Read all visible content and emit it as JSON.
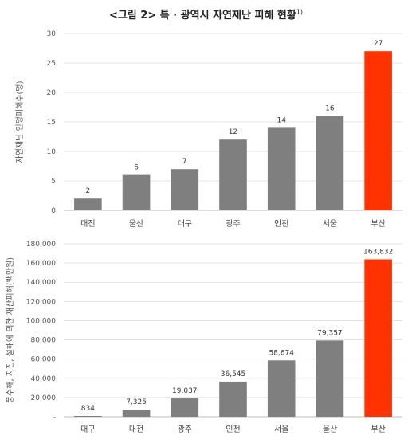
{
  "title": {
    "text": "<그림 2> 특 · 광역시 자연재난 피해 현황",
    "footnote_mark": "1)"
  },
  "colors": {
    "bar": "#7f7f7f",
    "highlight": "#ff3300",
    "grid": "#e3e3e3"
  },
  "chart_data": [
    {
      "type": "bar",
      "categories": [
        "대전",
        "울산",
        "대구",
        "광주",
        "인천",
        "서울",
        "부산"
      ],
      "values": [
        2,
        6,
        7,
        12,
        14,
        16,
        27
      ],
      "value_labels": [
        "2",
        "6",
        "7",
        "12",
        "14",
        "16",
        "27"
      ],
      "highlight": "부산",
      "ylabel": "자연재난 인명피해수(명)",
      "ylim": [
        0,
        30
      ],
      "yticks": [
        0,
        5,
        10,
        15,
        20,
        25,
        30
      ],
      "ytick_labels": [
        "0",
        "5",
        "10",
        "15",
        "20",
        "25",
        "30"
      ],
      "grid": true
    },
    {
      "type": "bar",
      "categories": [
        "대구",
        "대전",
        "광주",
        "인천",
        "서울",
        "울산",
        "부산"
      ],
      "values": [
        834,
        7325,
        19037,
        36545,
        58674,
        79357,
        163832
      ],
      "value_labels": [
        "834",
        "7,325",
        "19,037",
        "36,545",
        "58,674",
        "79,357",
        "163,832"
      ],
      "highlight": "부산",
      "ylabel": "풍수해, 지진, 설해에 의한 재산피해(백만원)",
      "ylim": [
        0,
        180000
      ],
      "yticks": [
        0,
        20000,
        40000,
        60000,
        80000,
        100000,
        120000,
        140000,
        160000,
        180000
      ],
      "ytick_labels": [
        "-",
        "20,000",
        "40,000",
        "60,000",
        "80,000",
        "100,000",
        "120,000",
        "140,000",
        "160,000",
        "180,000"
      ],
      "grid": true
    }
  ]
}
